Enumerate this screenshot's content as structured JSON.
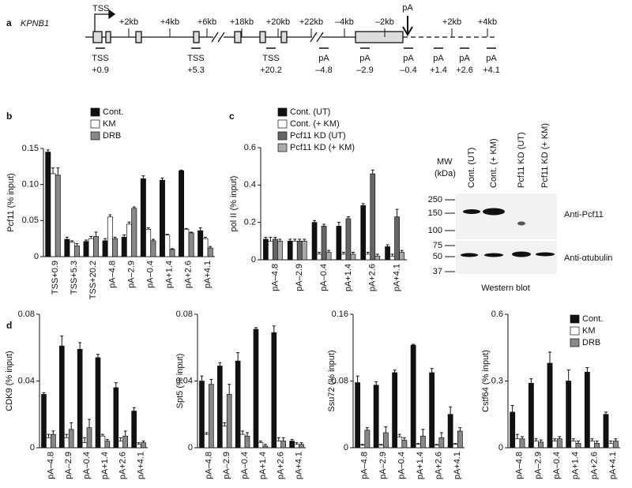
{
  "panel_a": {
    "label": "a",
    "gene": "KPNB1",
    "tss": "TSS",
    "pa": "pA",
    "scale_labels": [
      "+2kb",
      "+4kb",
      "+6kb",
      "+18kb",
      "+20kb",
      "+22kb",
      "–4kb",
      "–2kb",
      "+2kb",
      "+4kb"
    ],
    "primers": [
      {
        "name": "TSS",
        "pos": "+0.9"
      },
      {
        "name": "TSS",
        "pos": "+5.3"
      },
      {
        "name": "TSS",
        "pos": "+20.2"
      },
      {
        "name": "pA",
        "pos": "–4.8"
      },
      {
        "name": "pA",
        "pos": "–2.9"
      },
      {
        "name": "pA",
        "pos": "–0.4"
      },
      {
        "name": "pA",
        "pos": "+1.4"
      },
      {
        "name": "pA",
        "pos": "+2.6"
      },
      {
        "name": "pA",
        "pos": "+4.1"
      }
    ]
  },
  "western_blot": {
    "label": "Western blot",
    "mw": "MW",
    "kda": "(kDa)",
    "lanes": [
      "Cont. (UT)",
      "Cont. (+ KM)",
      "Pcf11 KD (UT)",
      "Pcf11 KD (+ KM)"
    ],
    "markers": [
      "250",
      "150",
      "100",
      "75",
      "50",
      "37"
    ],
    "antibodies": [
      "Anti-Pcf11",
      "Anti-αtubulin"
    ]
  },
  "chart_data": [
    {
      "type": "bar",
      "panel": "b",
      "ylabel": "Pcf11 (% input)",
      "categories": [
        "TSS+0.9",
        "TSS+5.3",
        "TSS+20.2",
        "pA–4.8",
        "pA–2.9",
        "pA–0.4",
        "pA+1.4",
        "pA+2.6",
        "pA+4.1"
      ],
      "ylim": [
        0,
        0.15
      ],
      "yticks": [
        0,
        0.05,
        {
          "value": 0.1,
          "label": "0.10"
        },
        0.15
      ],
      "series": [
        {
          "name": "Cont.",
          "color": "#111111",
          "values": [
            0.145,
            0.024,
            0.021,
            0.022,
            0.027,
            0.108,
            0.106,
            0.119,
            0.036
          ],
          "errors": [
            0.003,
            0.003,
            0.002,
            0.003,
            0.003,
            0.004,
            0.003,
            0.001,
            0.004
          ]
        },
        {
          "name": "KM",
          "color": "#ffffff",
          "values": [
            0.115,
            0.02,
            0.025,
            0.055,
            0.045,
            0.038,
            0.03,
            0.038,
            0.025
          ],
          "errors": [
            0.008,
            0.002,
            0.003,
            0.003,
            0.003,
            0.002,
            0.001,
            0.001,
            0.002
          ]
        },
        {
          "name": "DRB",
          "color": "#888888",
          "values": [
            0.113,
            0.015,
            0.028,
            0.025,
            0.067,
            0.022,
            0.01,
            0.033,
            0.012
          ],
          "errors": [
            0.01,
            0.003,
            0.006,
            0.002,
            0.002,
            0.002,
            0.001,
            0.001,
            0.002
          ]
        }
      ]
    },
    {
      "type": "bar",
      "panel": "c",
      "ylabel": "pol II (% input)",
      "categories": [
        "pA–4.8",
        "pA–2.9",
        "pA–0.4",
        "pA+1.4",
        "pA+2.6",
        "pA+4.1"
      ],
      "ylim": [
        0,
        0.6
      ],
      "yticks": [
        0,
        0.2,
        0.4,
        0.6
      ],
      "series": [
        {
          "name": "Cont. (UT)",
          "color": "#111111",
          "values": [
            0.11,
            0.1,
            0.2,
            0.18,
            0.29,
            0.07
          ],
          "errors": [
            0.01,
            0.01,
            0.01,
            0.02,
            0.01,
            0.01
          ]
        },
        {
          "name": "Cont. (+ KM)",
          "color": "#ffffff",
          "values": [
            0.1,
            0.1,
            0.03,
            0.03,
            0.03,
            0.02
          ],
          "errors": [
            0.02,
            0.01,
            0.01,
            0.01,
            0.01,
            0.01
          ]
        },
        {
          "name": "Pcf11 KD (UT)",
          "color": "#666666",
          "values": [
            0.11,
            0.1,
            0.18,
            0.22,
            0.46,
            0.23
          ],
          "errors": [
            0.01,
            0.01,
            0.01,
            0.01,
            0.02,
            0.04
          ]
        },
        {
          "name": "Pcf11 KD (+ KM)",
          "color": "#aaaaaa",
          "values": [
            0.1,
            0.1,
            0.04,
            0.03,
            0.02,
            0.04
          ],
          "errors": [
            0.01,
            0.01,
            0.01,
            0.01,
            0.01,
            0.01
          ]
        }
      ]
    },
    {
      "type": "bar",
      "panel": "d",
      "ylabel": "CDK9 (% input)",
      "categories": [
        "pA–4.8",
        "pA–2.9",
        "pA–0.4",
        "pA+1.4",
        "pA+2.6",
        "pA+4.1"
      ],
      "ylim": [
        0,
        0.08
      ],
      "yticks": [
        0,
        0.04,
        0.08
      ],
      "series": [
        {
          "name": "Cont.",
          "color": "#111111",
          "values": [
            0.032,
            0.061,
            0.059,
            0.054,
            0.036,
            0.022
          ],
          "errors": [
            0.001,
            0.006,
            0.004,
            0.002,
            0.003,
            0.002
          ]
        },
        {
          "name": "KM",
          "color": "#ffffff",
          "values": [
            0.006,
            0.006,
            0.003,
            0.007,
            0.004,
            0.002
          ],
          "errors": [
            0.002,
            0.002,
            0.003,
            0.001,
            0.002,
            0.001
          ]
        },
        {
          "name": "DRB",
          "color": "#888888",
          "values": [
            0.008,
            0.011,
            0.012,
            0.004,
            0.007,
            0.003
          ],
          "errors": [
            0.002,
            0.004,
            0.005,
            0.001,
            0.003,
            0.001
          ]
        }
      ]
    },
    {
      "type": "bar",
      "ylabel": "Spt5 (% input)",
      "categories": [
        "pA–4.8",
        "pA–2.9",
        "pA–0.4",
        "pA+1.4",
        "pA+2.6",
        "pA+4.1"
      ],
      "ylim": [
        0,
        0.08
      ],
      "yticks": [
        0,
        0.04,
        0.08
      ],
      "series": [
        {
          "name": "Cont.",
          "color": "#111111",
          "values": [
            0.04,
            0.049,
            0.052,
            0.071,
            0.069,
            0.004
          ],
          "errors": [
            0.003,
            0.002,
            0.005,
            0.001,
            0.004,
            0.001
          ]
        },
        {
          "name": "KM",
          "color": "#ffffff",
          "values": [
            0.008,
            0.013,
            0.008,
            0.003,
            0.004,
            0.002
          ],
          "errors": [
            0.001,
            0.002,
            0.002,
            0.001,
            0.002,
            0.001
          ]
        },
        {
          "name": "DRB",
          "color": "#888888",
          "values": [
            0.038,
            0.032,
            0.007,
            0.001,
            0.004,
            0.002
          ],
          "errors": [
            0.003,
            0.006,
            0.002,
            0.001,
            0.002,
            0.001
          ]
        }
      ]
    },
    {
      "type": "bar",
      "ylabel": "Ssu72 (% input)",
      "categories": [
        "pA–4.8",
        "pA–2.9",
        "pA–0.4",
        "pA+1.4",
        "pA+2.6",
        "pA+4.1"
      ],
      "ylim": [
        0,
        0.16
      ],
      "yticks": [
        0,
        0.08,
        0.16
      ],
      "series": [
        {
          "name": "Cont.",
          "color": "#111111",
          "values": [
            0.078,
            0.075,
            0.09,
            0.123,
            0.09,
            0.04
          ],
          "errors": [
            0.008,
            0.004,
            0.003,
            0.001,
            0.005,
            0.009
          ]
        },
        {
          "name": "KM",
          "color": "#ffffff",
          "values": [
            0.003,
            0.003,
            0.013,
            0.004,
            0.003,
            0.004
          ],
          "errors": [
            0.001,
            0.001,
            0.003,
            0.001,
            0.001,
            0.001
          ]
        },
        {
          "name": "DRB",
          "color": "#888888",
          "values": [
            0.021,
            0.018,
            0.009,
            0.014,
            0.012,
            0.02
          ],
          "errors": [
            0.003,
            0.007,
            0.003,
            0.008,
            0.006,
            0.004
          ]
        }
      ]
    },
    {
      "type": "bar",
      "ylabel": "Cstf64 (% input)",
      "categories": [
        "pA–4.8",
        "pA–2.9",
        "pA–0.4",
        "pA+1.4",
        "pA+2.6",
        "pA+4.1"
      ],
      "ylim": [
        0,
        0.6
      ],
      "yticks": [
        0,
        0.3,
        0.6
      ],
      "series": [
        {
          "name": "Cont.",
          "color": "#111111",
          "values": [
            0.16,
            0.29,
            0.38,
            0.3,
            0.34,
            0.15
          ],
          "errors": [
            0.03,
            0.02,
            0.05,
            0.05,
            0.02,
            0.01
          ]
        },
        {
          "name": "KM",
          "color": "#ffffff",
          "values": [
            0.04,
            0.03,
            0.03,
            0.03,
            0.03,
            0.02
          ],
          "errors": [
            0.02,
            0.01,
            0.01,
            0.01,
            0.01,
            0.01
          ]
        },
        {
          "name": "DRB",
          "color": "#888888",
          "values": [
            0.04,
            0.025,
            0.04,
            0.02,
            0.02,
            0.03
          ],
          "errors": [
            0.01,
            0.01,
            0.01,
            0.01,
            0.01,
            0.01
          ]
        }
      ]
    }
  ]
}
